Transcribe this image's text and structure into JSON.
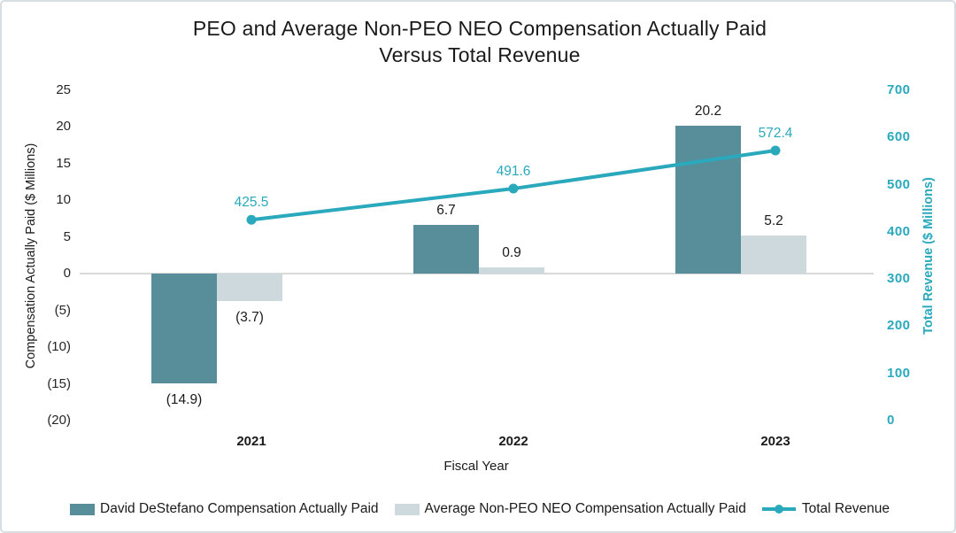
{
  "chart_data": {
    "type": "bar",
    "subtype": "combo-bar-line-dual-axis",
    "title": "PEO and Average Non-PEO NEO Compensation Actually Paid Versus Total Revenue",
    "title_line1": "PEO and Average Non-PEO NEO Compensation Actually Paid",
    "title_line2": "Versus Total Revenue",
    "categories": [
      "2021",
      "2022",
      "2023"
    ],
    "series": [
      {
        "name": "David DeStefano Compensation Actually Paid",
        "type": "bar",
        "axis": "left",
        "color": "#578E99",
        "values": [
          -14.9,
          6.7,
          20.2
        ],
        "labels": [
          "(14.9)",
          "6.7",
          "20.2"
        ]
      },
      {
        "name": "Average Non-PEO NEO Compensation Actually Paid",
        "type": "bar",
        "axis": "left",
        "color": "#CDD9DD",
        "values": [
          -3.7,
          0.9,
          5.2
        ],
        "labels": [
          "(3.7)",
          "0.9",
          "5.2"
        ]
      },
      {
        "name": "Total Revenue",
        "type": "line",
        "axis": "right",
        "color": "#2AA9BD",
        "values": [
          425.5,
          491.6,
          572.4
        ],
        "labels": [
          "425.5",
          "491.6",
          "572.4"
        ]
      }
    ],
    "left_axis": {
      "title": "Compensation Actually Paid ($ Millions)",
      "min": -20,
      "max": 25,
      "step": 5,
      "ticks": [
        "25",
        "20",
        "15",
        "10",
        "5",
        "0",
        "(5)",
        "(10)",
        "(15)",
        "(20)"
      ]
    },
    "right_axis": {
      "title": "Total Revenue ($ Millions)",
      "min": 0,
      "max": 700,
      "step": 100,
      "ticks": [
        "700",
        "600",
        "500",
        "400",
        "300",
        "200",
        "100",
        "0"
      ]
    },
    "x_axis": {
      "title": "Fiscal Year"
    },
    "legend_position": "bottom",
    "grid": "zero-line-only",
    "colors": {
      "peo_bar": "#578E99",
      "neo_bar": "#CDD9DD",
      "line": "#2AA9BD",
      "text": "#1A1A1A",
      "axis_line": "#D9D9D9",
      "frame_border": "#D7DDE1"
    }
  }
}
